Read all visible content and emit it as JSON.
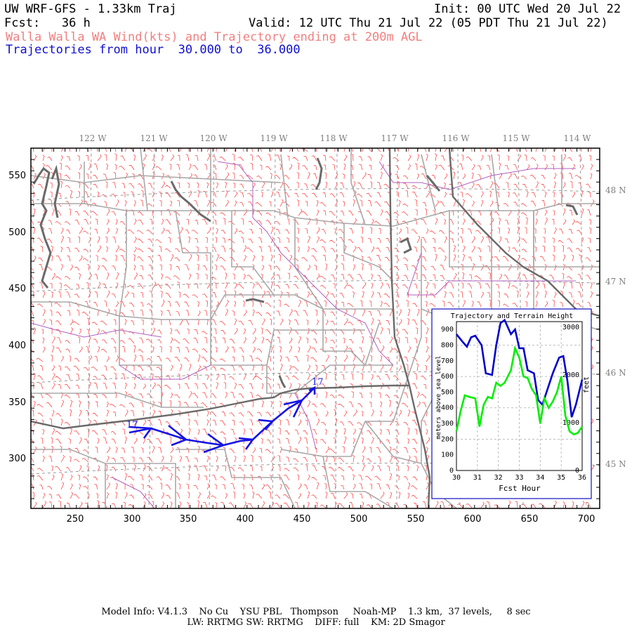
{
  "header": {
    "model_title": "UW WRF-GFS - 1.33km Traj",
    "init": "Init: 00 UTC Wed 20 Jul 22",
    "fcst": "Fcst:   36 h",
    "valid": "Valid: 12 UTC Thu 21 Jul 22 (05 PDT Thu 21 Jul 22)",
    "subtitle": "Walla Walla WA Wind(kts) and Trajectory ending at 200m AGL",
    "traj_range": "Trajectories from hour  30.000 to  36.000"
  },
  "map": {
    "lon_labels": [
      "122 W",
      "121 W",
      "120 W",
      "119 W",
      "118 W",
      "117 W",
      "116 W",
      "115 W",
      "114 W"
    ],
    "lat_labels": [
      "48 N",
      "47 N",
      "46 N",
      "45 N"
    ],
    "x_ticks": [
      "250",
      "300",
      "350",
      "400",
      "450",
      "500",
      "550",
      "600",
      "650",
      "700"
    ],
    "y_ticks": [
      "550",
      "500",
      "450",
      "400",
      "350",
      "300"
    ],
    "trajectory_start_label": "17",
    "trajectory_end_label": "17",
    "colors": {
      "barbs": "#ff3030",
      "state_border": "#6a6a6a",
      "county": "#a8a8a8",
      "rivers": "#b060c0",
      "trajectory": "#1010e0"
    }
  },
  "inset": {
    "title": "Trajectory and Terrain Height",
    "xlabel": "Fcst Hour",
    "ylabel_left": "meters above sea level",
    "ylabel_right": "feet",
    "x_ticks": [
      "30",
      "31",
      "32",
      "33",
      "34",
      "35",
      "36"
    ],
    "y_ticks_left": [
      "0",
      "100",
      "200",
      "300",
      "400",
      "500",
      "600",
      "700",
      "800",
      "900"
    ],
    "y_ticks_right": [
      "0",
      "1000",
      "2000",
      "3000"
    ]
  },
  "chart_data": {
    "type": "line",
    "title": "Trajectory and Terrain Height",
    "xlabel": "Fcst Hour",
    "ylabel": "meters above sea level",
    "xlim": [
      30,
      36
    ],
    "ylim": [
      0,
      950
    ],
    "series": [
      {
        "name": "",
        "color": "#0000cc",
        "x": [
          30.0,
          30.3,
          30.5,
          30.7,
          30.9,
          31.2,
          31.4,
          31.7,
          31.9,
          32.1,
          32.3,
          32.6,
          32.8,
          33.0,
          33.2,
          33.4,
          33.7,
          33.9,
          34.1,
          34.3,
          34.6,
          34.9,
          35.1,
          35.3,
          35.5,
          35.7,
          36.0
        ],
        "y": [
          870,
          820,
          790,
          850,
          860,
          800,
          620,
          610,
          800,
          940,
          960,
          870,
          900,
          780,
          780,
          640,
          620,
          450,
          420,
          500,
          620,
          720,
          730,
          570,
          340,
          420,
          580
        ]
      },
      {
        "name": "",
        "color": "#00ee00",
        "x": [
          30.0,
          30.2,
          30.4,
          30.6,
          30.9,
          31.1,
          31.3,
          31.5,
          31.7,
          31.9,
          32.1,
          32.3,
          32.6,
          32.8,
          33.0,
          33.2,
          33.4,
          33.6,
          33.8,
          34.0,
          34.2,
          34.4,
          34.6,
          34.8,
          35.0,
          35.2,
          35.4,
          35.6,
          35.8,
          36.0
        ],
        "y": [
          250,
          380,
          480,
          470,
          460,
          280,
          420,
          470,
          460,
          560,
          540,
          560,
          640,
          780,
          720,
          600,
          590,
          520,
          480,
          300,
          460,
          400,
          440,
          500,
          600,
          350,
          250,
          230,
          240,
          280
        ]
      }
    ]
  },
  "footer": {
    "line1": "Model Info: V4.1.3    No Cu    YSU PBL   Thompson     Noah-MP    1.3 km,  37 levels,     8 sec",
    "line2": "LW: RRTMG SW: RRTMG    DIFF: full    KM: 2D Smagor"
  }
}
